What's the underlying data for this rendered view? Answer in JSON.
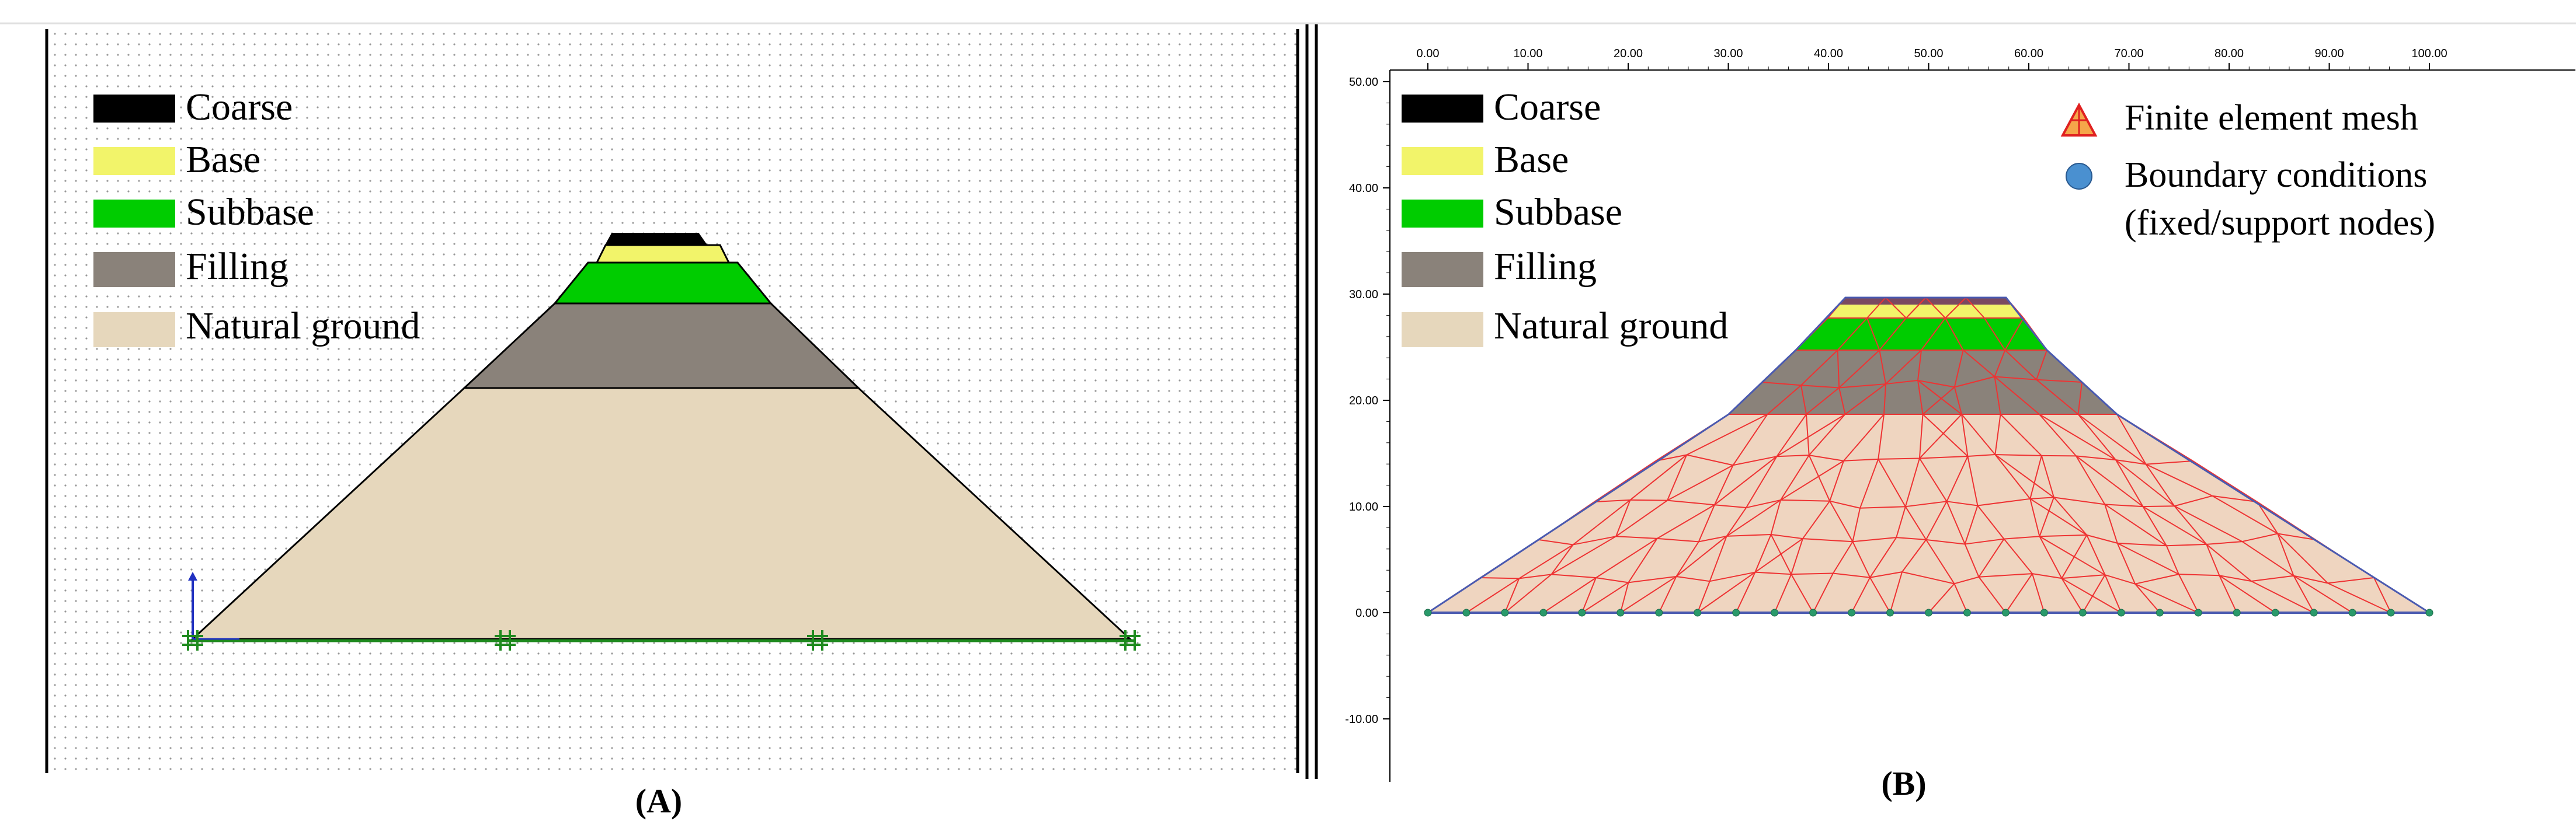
{
  "legend": {
    "coarse": {
      "label": "Coarse",
      "color": "#000000"
    },
    "base": {
      "label": "Base",
      "color": "#f2f46a"
    },
    "subbase": {
      "label": "Subbase",
      "color": "#00cc00"
    },
    "filling": {
      "label": "Filling",
      "color": "#8a827a"
    },
    "natural_ground": {
      "label": "Natural ground",
      "color": "#e6d7bc"
    }
  },
  "panel_a": {
    "caption": "(A)"
  },
  "panel_b": {
    "caption": "(B)",
    "mesh_legend": "Finite element mesh",
    "bc_legend_line1": "Boundary conditions",
    "bc_legend_line2": "(fixed/support nodes)",
    "top_ticks": [
      "0.00",
      "10.00",
      "20.00",
      "30.00",
      "40.00",
      "50.00",
      "60.00",
      "70.00",
      "80.00",
      "90.00",
      "100.00"
    ],
    "left_ticks": [
      "50.00",
      "40.00",
      "30.00",
      "20.00",
      "10.00",
      "0.00",
      "-10.00"
    ]
  }
}
